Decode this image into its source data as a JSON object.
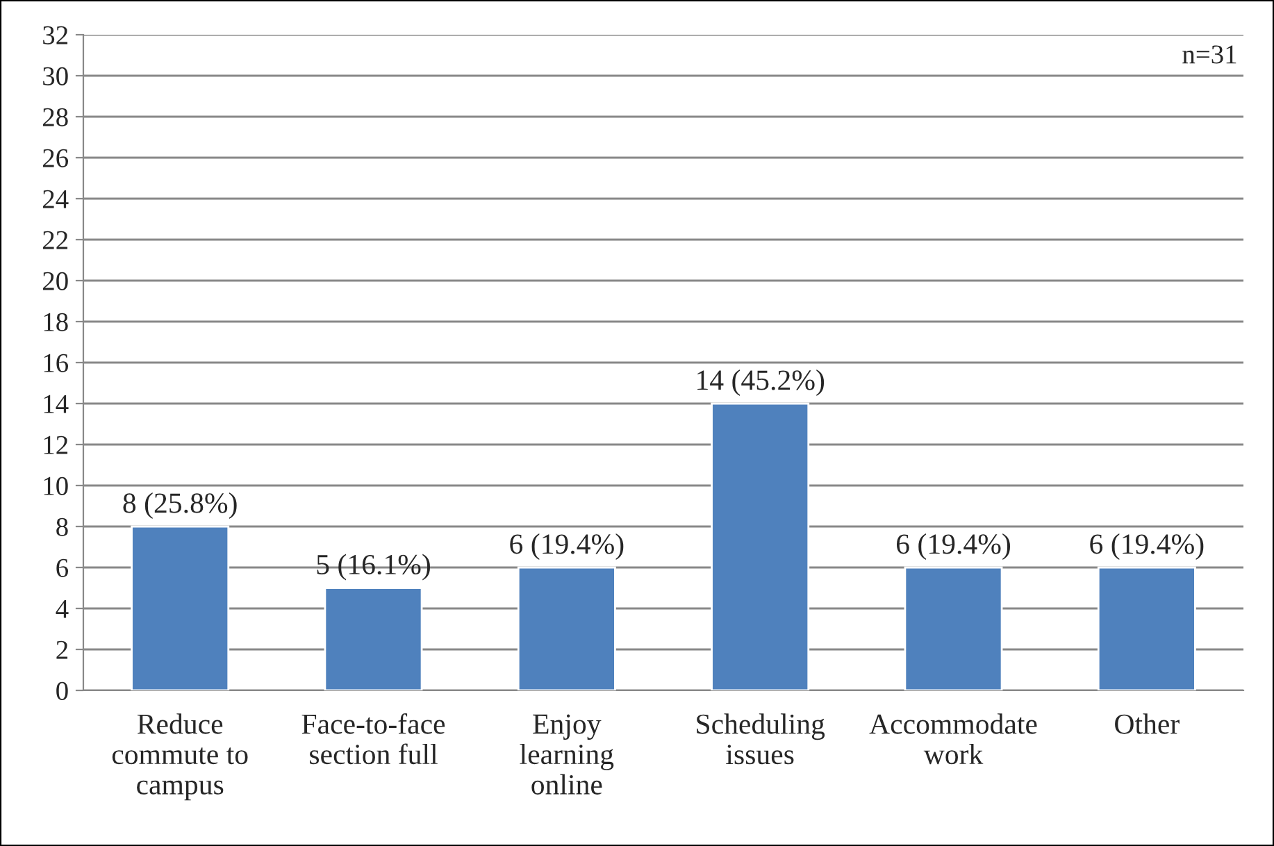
{
  "chart_data": {
    "type": "bar",
    "categories": [
      "Reduce\ncommute to\ncampus",
      "Face-to-face\nsection full",
      "Enjoy\nlearning\nonline",
      "Scheduling\nissues",
      "Accommodate\nwork",
      "Other"
    ],
    "values": [
      8,
      5,
      6,
      14,
      6,
      6
    ],
    "value_labels": [
      "8 (25.8%)",
      "5 (16.1%)",
      "6 (19.4%)",
      "14 (45.2%)",
      "6 (19.4%)",
      "6 (19.4%)"
    ],
    "color": "#4f81bd",
    "ylim": [
      0,
      32
    ],
    "yticks": [
      0,
      2,
      4,
      6,
      8,
      10,
      12,
      14,
      16,
      18,
      20,
      22,
      24,
      26,
      28,
      30,
      32
    ],
    "grid": "y",
    "annotations": [
      "n=31"
    ]
  }
}
